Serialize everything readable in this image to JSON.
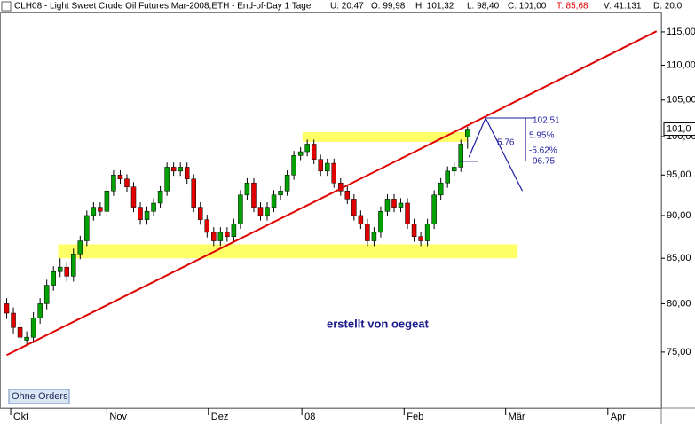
{
  "chart_data": {
    "type": "candlestick",
    "header": [
      "CLH08 - Light Sweet Crude Oil Futures,Mar-2008,ETH - End-of-Day 1 Tage",
      "U: 20:47",
      "O: 99,98",
      "H: 101,32",
      "L: 98,40",
      "C: 101,00",
      "T: 85,68",
      "V: 41.131",
      "D: 20.0"
    ],
    "annotation": "erstellt von oegeat",
    "x": [
      0,
      1,
      2,
      3,
      4,
      5,
      6,
      7,
      8,
      9,
      10,
      11,
      12,
      13,
      14,
      15,
      16,
      17,
      18,
      19,
      20,
      21,
      22,
      23,
      24,
      25,
      26,
      27,
      28,
      29,
      30,
      31,
      32,
      33,
      34,
      35,
      36,
      37,
      38,
      39,
      40,
      41,
      42,
      43,
      44,
      45,
      46,
      47,
      48,
      49,
      50,
      51,
      52,
      53,
      54,
      55,
      56,
      57,
      58,
      59,
      60,
      61,
      62,
      63,
      64,
      65,
      66,
      67,
      68,
      69
    ],
    "open": [
      80,
      79,
      77.5,
      76.2,
      76.5,
      78.5,
      80,
      82,
      83.5,
      84,
      83,
      85.5,
      87,
      90,
      91,
      90.5,
      93,
      95,
      94.5,
      93.5,
      91,
      89.5,
      90.5,
      91.5,
      93,
      96,
      95.5,
      96,
      94.5,
      91,
      89.5,
      88,
      87,
      88,
      87.5,
      89,
      92.5,
      94,
      91,
      90,
      91,
      92.5,
      93,
      95,
      97.5,
      98,
      99,
      97,
      95.5,
      96.5,
      94,
      93,
      92,
      90,
      89,
      87,
      88,
      90.5,
      92,
      91,
      91.5,
      89,
      87.5,
      87,
      89,
      92.5,
      94,
      95.5,
      96,
      99.98
    ],
    "high": [
      80.6,
      79.6,
      78.1,
      77.1,
      79.1,
      80.6,
      82.6,
      84.1,
      85,
      84.6,
      86.1,
      87.6,
      90.6,
      91.6,
      91.6,
      93.6,
      95.6,
      95.6,
      95.1,
      94.1,
      91.6,
      91.1,
      92.1,
      93.6,
      96.6,
      96.6,
      96.6,
      96.6,
      95.1,
      91.6,
      90.1,
      88.6,
      88.6,
      88.6,
      89.6,
      93.1,
      94.6,
      94.6,
      91.6,
      91.6,
      93.1,
      93.6,
      95.6,
      98.1,
      98.6,
      99.6,
      99.6,
      97.6,
      97.1,
      97.1,
      94.6,
      93.6,
      92.6,
      90.6,
      89.6,
      88.6,
      91.1,
      92.6,
      92.6,
      92.1,
      92.1,
      89.6,
      88.1,
      89.6,
      93.1,
      94.6,
      96.1,
      96.6,
      99.6,
      101.32
    ],
    "low": [
      78.4,
      76.9,
      75.9,
      75.6,
      75.9,
      77.9,
      79.4,
      81.4,
      82.9,
      82.4,
      82.4,
      84.9,
      86.4,
      89.4,
      89.9,
      89.9,
      92.4,
      93.9,
      92.9,
      90.4,
      88.9,
      88.9,
      89.9,
      90.9,
      92.4,
      94.9,
      94.9,
      93.9,
      90.4,
      88.9,
      87.4,
      86.4,
      86.4,
      86.9,
      86.9,
      88.4,
      91.9,
      90.4,
      89.4,
      89.4,
      90.4,
      91.9,
      92.4,
      94.4,
      96.9,
      97.4,
      96.4,
      94.9,
      94.9,
      93.4,
      92.4,
      91.4,
      89.4,
      88.4,
      86.4,
      86.4,
      87.4,
      89.9,
      90.4,
      90.4,
      88.4,
      86.9,
      86.4,
      86.4,
      88.4,
      91.9,
      93.4,
      94.9,
      95.4,
      98.4
    ],
    "close": [
      79,
      77.5,
      76.5,
      76.5,
      78.5,
      80,
      82,
      83.5,
      84,
      83,
      85.5,
      87,
      90,
      91,
      90.5,
      93,
      95,
      94.5,
      93.5,
      91,
      89.5,
      90.5,
      91.5,
      93,
      96,
      95.5,
      96,
      94.5,
      91,
      89.5,
      88,
      87,
      88,
      87.5,
      89,
      92.5,
      94,
      91,
      90,
      91,
      92.5,
      93,
      95,
      97.5,
      98,
      99,
      97,
      95.5,
      96.5,
      94,
      93,
      92,
      90,
      89,
      87,
      88,
      90.5,
      92,
      91,
      91.5,
      89,
      87.5,
      87,
      89,
      92.5,
      94,
      95.5,
      96,
      99,
      101
    ],
    "up_color": "#00a000",
    "down_color": "#e00000",
    "xlim": [
      -1,
      98
    ],
    "xticks": [
      {
        "value": 0.6,
        "label": "Okt"
      },
      {
        "value": 15,
        "label": "Nov"
      },
      {
        "value": 30.2,
        "label": "Dez"
      },
      {
        "value": 44.2,
        "label": "08"
      },
      {
        "value": 59.5,
        "label": "Feb"
      },
      {
        "value": 74.7,
        "label": "Mär"
      },
      {
        "value": 90,
        "label": "Apr"
      }
    ],
    "ylim": [
      69.6,
      120
    ],
    "log_scale": true,
    "yticks": [
      {
        "value": 75,
        "label": "75,00"
      },
      {
        "value": 80,
        "label": "80,00"
      },
      {
        "value": 85,
        "label": "85,00"
      },
      {
        "value": 90,
        "label": "90,00"
      },
      {
        "value": 95,
        "label": "95,00"
      },
      {
        "value": 100,
        "label": "100,00"
      },
      {
        "value": 105,
        "label": "105,00"
      },
      {
        "value": 110,
        "label": "110,00"
      },
      {
        "value": 115,
        "label": "115,00"
      }
    ],
    "last_price": {
      "value": 101,
      "label": "101,0"
    },
    "zones": [
      {
        "x": [
          7.7,
          76.5
        ],
        "y": [
          85,
          86.6
        ]
      },
      {
        "x": [
          44.3,
          69
        ],
        "y": [
          99.3,
          100.6
        ]
      }
    ],
    "zone_color": "#ffff66",
    "trendline": {
      "x": [
        0,
        97.3
      ],
      "y": [
        74.7,
        115.1
      ],
      "color": "#e00000"
    },
    "projection": {
      "x": [
        69.2,
        71.7,
        77.2
      ],
      "y": [
        97.3,
        102.51,
        93
      ],
      "color": "#1a1aa0"
    },
    "levels": [
      {
        "x": [
          71.7,
          79
        ],
        "y": 102.51
      },
      {
        "x": [
          67.7,
          70.5
        ],
        "y": 96.75
      }
    ],
    "projection_labels": [
      "5.95%",
      "5.76",
      "-5.62%"
    ]
  },
  "ui": {
    "button": "Ohne Orders"
  }
}
